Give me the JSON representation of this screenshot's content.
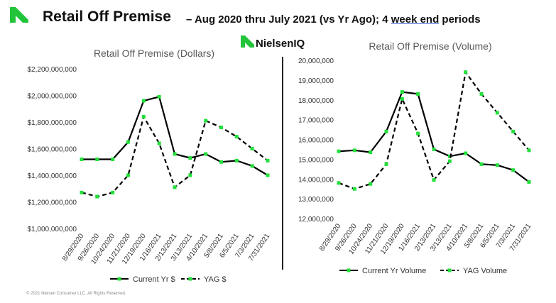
{
  "header": {
    "title": "Retail Off Premise",
    "subtitle_prefix": "– Aug 2020 thru July 2021 (vs Yr Ago); 4 ",
    "subtitle_underlined": "week end",
    "subtitle_suffix": " periods",
    "brand": "NielsenIQ"
  },
  "footer": {
    "copyright": "© 2021 Nielsen Consumer LLC. All Rights Reserved."
  },
  "colors": {
    "brand_green": "#22c43a",
    "line": "#000000",
    "marker": "#22e03a"
  },
  "chart_data": [
    {
      "type": "line",
      "title": "Retail Off Premise (Dollars)",
      "categories": [
        "8/29/2020",
        "9/26/2020",
        "10/24/2020",
        "11/21/2020",
        "12/19/2020",
        "1/16/2021",
        "2/13/2021",
        "3/13/2021",
        "4/10/2021",
        "5/8/2021",
        "6/5/2021",
        "7/3/2021",
        "7/31/2021"
      ],
      "ylim": [
        1000000000,
        2200000000
      ],
      "yticks": [
        "$1,000,000,000",
        "$1,200,000,000",
        "$1,400,000,000",
        "$1,600,000,000",
        "$1,800,000,000",
        "$2,000,000,000",
        "$2,200,000,000"
      ],
      "series": [
        {
          "name": "Current Yr $",
          "style": "solid",
          "values": [
            1520000000,
            1520000000,
            1520000000,
            1650000000,
            1960000000,
            1990000000,
            1560000000,
            1530000000,
            1560000000,
            1500000000,
            1510000000,
            1470000000,
            1400000000
          ]
        },
        {
          "name": "YAG $",
          "style": "dashed",
          "values": [
            1270000000,
            1240000000,
            1270000000,
            1400000000,
            1840000000,
            1640000000,
            1310000000,
            1400000000,
            1810000000,
            1760000000,
            1690000000,
            1600000000,
            1510000000
          ]
        }
      ],
      "legend_position": "bottom",
      "grid": false
    },
    {
      "type": "line",
      "title": "Retail Off Premise (Volume)",
      "categories": [
        "8/29/2020",
        "9/26/2020",
        "10/24/2020",
        "11/21/2020",
        "12/19/2020",
        "1/16/2021",
        "2/13/2021",
        "3/13/2021",
        "4/10/2021",
        "5/8/2021",
        "6/5/2021",
        "7/3/2021",
        "7/31/2021"
      ],
      "ylim": [
        12000000,
        20000000
      ],
      "yticks": [
        "12,000,000",
        "13,000,000",
        "14,000,000",
        "15,000,000",
        "16,000,000",
        "17,000,000",
        "18,000,000",
        "19,000,000",
        "20,000,000"
      ],
      "series": [
        {
          "name": "Current Yr Volume",
          "style": "solid",
          "values": [
            15400000,
            15450000,
            15350000,
            16400000,
            18400000,
            18300000,
            15500000,
            15150000,
            15300000,
            14750000,
            14700000,
            14450000,
            13850000
          ]
        },
        {
          "name": "YAG Volume",
          "style": "dashed",
          "values": [
            13800000,
            13500000,
            13750000,
            14750000,
            18050000,
            16300000,
            13950000,
            14900000,
            19400000,
            18300000,
            17350000,
            16400000,
            15450000
          ]
        }
      ],
      "legend_position": "bottom",
      "grid": false
    }
  ]
}
